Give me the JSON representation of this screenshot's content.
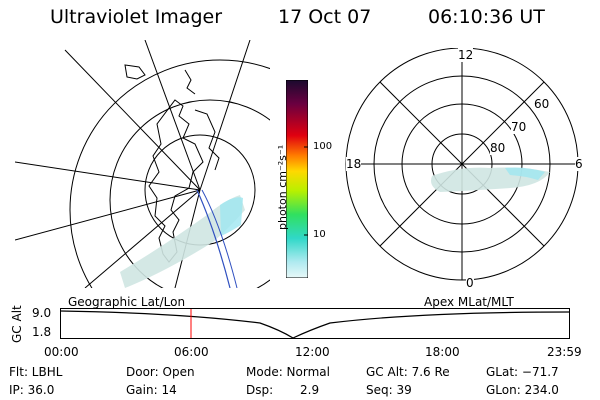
{
  "header": {
    "instrument": "Ultraviolet Imager",
    "date": "17 Oct 07",
    "time": "06:10:36 UT"
  },
  "colorbar": {
    "unit": "photon cm⁻²s⁻¹",
    "ticks": [
      "100",
      "10"
    ]
  },
  "polar": {
    "mlt_labels": {
      "top": "12",
      "left": "18",
      "right": "6",
      "bottom": "0"
    },
    "lat_labels": [
      "60",
      "70",
      "80"
    ]
  },
  "timeline": {
    "left_title": "Geographic Lat/Lon",
    "right_title": "Apex MLat/MLT",
    "axis_label": "GC Alt",
    "y_top": "9.0",
    "y_bottom": "1.8",
    "x_ticks": [
      "00:00",
      "06:00",
      "12:00",
      "18:00",
      "23:59"
    ]
  },
  "info": {
    "flt": "Flt: LBHL",
    "door": "Door: Open",
    "mode": "Mode: Normal",
    "gcalt": "GC Alt: 7.6 Re",
    "glat": "GLat: −71.7",
    "ip": "IP: 36.0",
    "gain": "Gain: 14",
    "dsp_label": "Dsp:",
    "dsp_value": "2.9",
    "seq": "Seq: 39",
    "glon": "GLon: 234.0"
  },
  "colors": {
    "aurora": "#cfe6e2",
    "aurora_edge": "#9ee6f0",
    "marker": "#ff0000",
    "orbit": "#3050c0"
  }
}
